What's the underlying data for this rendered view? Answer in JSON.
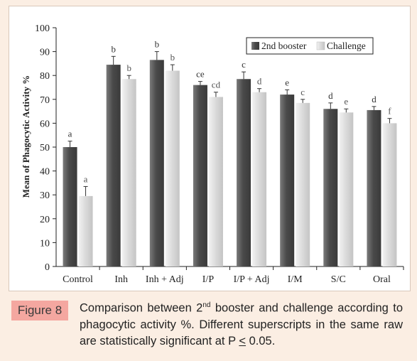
{
  "caption": {
    "label": "Figure 8",
    "text_a": "Comparison between 2",
    "text_sup": "nd",
    "text_b": " booster and challenge according to phagocytic activity %. Different superscripts in the same raw are statistically significant at P ",
    "text_le": "<",
    "text_c": " 0.05."
  },
  "chart_data": {
    "type": "bar",
    "title": "",
    "xlabel": "",
    "ylabel": "Mean of Phagocytic Activity %",
    "ylim": [
      0,
      100
    ],
    "yticks": [
      "0",
      "10",
      "20",
      "30",
      "40",
      "50",
      "60",
      "70",
      "80",
      "90",
      "100"
    ],
    "grid": false,
    "legend_position": "top-right",
    "categories": [
      "Control",
      "Inh",
      "Inh + Adj",
      "I/P",
      "I/P + Adj",
      "I/M",
      "S/C",
      "Oral"
    ],
    "series": [
      {
        "name": "2nd booster",
        "color": "#555555",
        "values": [
          50,
          84.5,
          86.5,
          76,
          78.5,
          72,
          66,
          65.5
        ],
        "errors": [
          2.5,
          3.5,
          3.5,
          1.5,
          3,
          2,
          2.5,
          1.5
        ],
        "superscripts": [
          "a",
          "b",
          "b",
          "ce",
          "c",
          "e",
          "d",
          "d"
        ]
      },
      {
        "name": "Challenge",
        "color": "#d6d6d6",
        "values": [
          29.5,
          78.5,
          82,
          71,
          73,
          68.5,
          64.5,
          60
        ],
        "errors": [
          4,
          1.5,
          2.5,
          2,
          1.5,
          1.5,
          1.5,
          2
        ],
        "superscripts": [
          "a",
          "b",
          "b",
          "cd",
          "d",
          "c",
          "e",
          "f"
        ]
      }
    ]
  }
}
